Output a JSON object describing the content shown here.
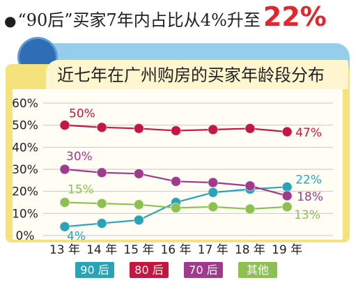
{
  "headline": {
    "bullet": "●",
    "text": "“90后”买家7年内占比从4%升至",
    "highlight": "22%"
  },
  "colors": {
    "headline_highlight": "#e1262d",
    "deco_blue_light": "#96cdec",
    "deco_blue_dark": "#2f6db4",
    "card_yellow": "#f6e27c",
    "title_band": "#fff6cf"
  },
  "chart_data": {
    "type": "line",
    "title": "近七年在广州购房的买家年龄段分布",
    "categories": [
      "13 年",
      "14 年",
      "15 年",
      "16 年",
      "17 年",
      "18 年",
      "19 年"
    ],
    "ylim": [
      0,
      60
    ],
    "yticks": [
      0,
      10,
      20,
      30,
      40,
      50,
      60
    ],
    "ytick_labels": [
      "0%",
      "10%",
      "20%",
      "30%",
      "40%",
      "50%",
      "60%"
    ],
    "grid": true,
    "legend": "bottom",
    "series": [
      {
        "name": "90 后",
        "color": "#2aa3b7",
        "values": [
          4,
          5.5,
          7,
          15,
          19.5,
          21,
          22
        ],
        "data_labels": [
          {
            "index": 0,
            "text": "4%"
          },
          {
            "index": 6,
            "text": "22%"
          }
        ]
      },
      {
        "name": "80 后",
        "color": "#c3173f",
        "values": [
          50,
          49,
          48.5,
          47.5,
          48,
          48.5,
          47
        ],
        "data_labels": [
          {
            "index": 0,
            "text": "50%"
          },
          {
            "index": 6,
            "text": "47%"
          }
        ]
      },
      {
        "name": "70 后",
        "color": "#9f3a8d",
        "values": [
          30,
          28.5,
          28,
          24.5,
          24,
          22.5,
          18
        ],
        "data_labels": [
          {
            "index": 0,
            "text": "30%"
          },
          {
            "index": 6,
            "text": "18%"
          }
        ]
      },
      {
        "name": "其他",
        "color": "#8cc152",
        "values": [
          15,
          14.5,
          14,
          12.5,
          13,
          12,
          13
        ],
        "data_labels": [
          {
            "index": 0,
            "text": "15%"
          },
          {
            "index": 6,
            "text": "13%"
          }
        ]
      }
    ]
  }
}
